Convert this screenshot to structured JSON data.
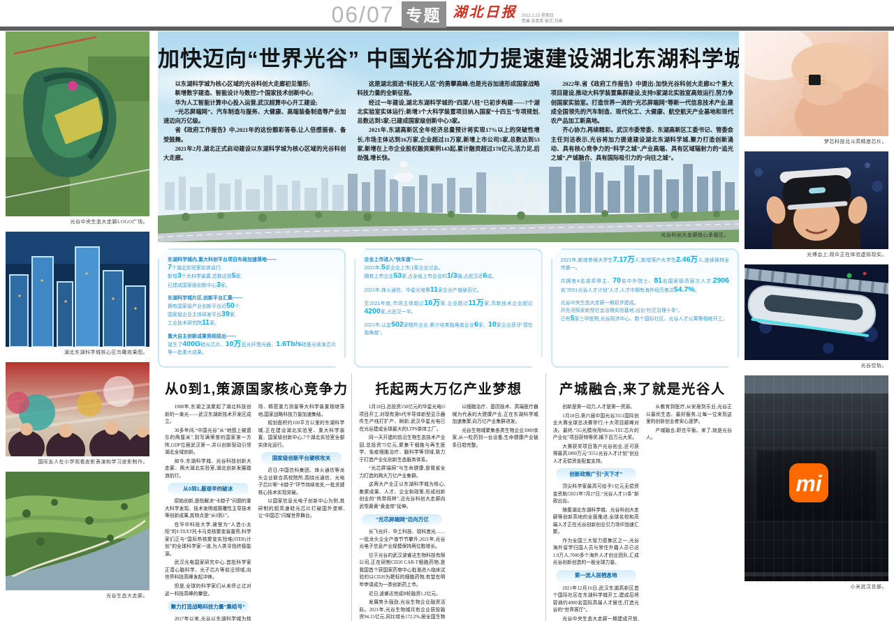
{
  "header": {
    "page_number": "06/07",
    "section": "专题",
    "masthead": "湖北日报",
    "date_line": "2022.1.23 星期日",
    "credit_line": "责编:张真真 版式:刘雍"
  },
  "headline": "加快迈向“世界光谷” 中国光谷加力提速建设湖北东湖科学城",
  "intro_columns": [
    [
      "以东湖科学城为核心区域的光谷科创大走廊初见雏形;",
      "新增数字建造、智能设计与数控2个国家技术创新中心;",
      "华为人工智能计算中心投入运营,武汉超算中心开工建设;",
      "“光芯屏端网”、汽车制造与服务、大健康、高端装备制造等产业加速迈向万亿级。",
      "省《政府工作报告》中,2021年的这份靓彩答卷,让人倍感振奋、备受鼓舞。",
      "2021年2月,湖北正式启动建设以东湖科学城为核心区域的光谷科创大走廊。"
    ],
    [
      "这是湖北挺进“科技无人区”的勇攀高峰,也是光谷加速形成国家战略科技力量的全新征程。",
      "经过一年建设,湖北东湖科学城的“四梁八柱”已初步构建——7个湖北实验室实体运行;新增3个大科学装置项目纳入国家“十四五”专项规划,总数达到5家;已建成国家级创新中心3家。",
      "2021年,东湖高新区全年经济总量预计将实现17%以上的突破性增长,市场主体达到16万家,企业超过11万家,新增上市公司5家,总数达到53家,新增在上市企业股权融资案例143起,累计融资超过178亿元,活力足,后劲强,增长快。"
    ],
    [
      "2022年,省《政府工作报告》中提出:加快光谷科创大走廊82个重大项目建设,推动大科学装置集群建设,支持9家湖北实验室高效运行,努力争创国家实验室。打造世界一流的“光芯屏端网”等新一代信息技术产业,建成全国领先的汽车制造、现代化工、大健康、航空航天产业基地和现代农产品加工新高地。",
      "齐心协力,再续精彩。武汉市委常委、东湖高新区工委书记、管委会主任刘洁表示,光谷将加力提速建设湖北东湖科学城,聚力打造创新涌动、具有核心竞争力的“科学之城”,产业高端、具有区域辐射力的“追光之城”,产城融合、具有国际吸引力的“向往之城”。"
    ]
  ],
  "panorama_caption": "光谷科创大走廊核心承载区。",
  "infographic": {
    "accent_color": "#00aeef",
    "text_color": "#3a99d2",
    "columns": [
      [
        [
          [
            {
              "t": "东湖科学城内,重大科创平台项目布局加速落地——"
            }
          ],
          [
            {
              "t": "7",
              "h": true
            },
            {
              "t": "个湖北实验室实体运行;"
            }
          ],
          [
            {
              "t": "新增"
            },
            {
              "t": "3",
              "h": true
            },
            {
              "t": "个大科学装置,总数达到"
            },
            {
              "t": "5",
              "h": true
            },
            {
              "t": "家;"
            }
          ],
          [
            {
              "t": "已建成国家级创新中心"
            },
            {
              "t": "3",
              "h": true
            },
            {
              "t": "家。"
            }
          ]
        ],
        [
          [
            {
              "t": "东湖科学城片区,创新平台汇集——"
            }
          ],
          [
            {
              "t": "拥有国家级产业创新平台近"
            },
            {
              "t": "50",
              "h": true
            },
            {
              "t": "个;"
            }
          ],
          [
            {
              "t": "国家级企业主体研发平台"
            },
            {
              "t": "39",
              "h": true
            },
            {
              "t": "家;"
            }
          ],
          [
            {
              "t": "工业技术研究院"
            },
            {
              "t": "11",
              "h": true
            },
            {
              "t": "家。"
            }
          ]
        ],
        [
          [
            {
              "t": "重大自主创新成果竞相迭出——"
            }
          ],
          [
            {
              "t": "诞生了"
            },
            {
              "t": "400G",
              "h": true
            },
            {
              "t": "硅光芯片、"
            },
            {
              "t": "10万",
              "h": true
            },
            {
              "t": "瓦光纤激光器、"
            },
            {
              "t": "1.6Tb/s",
              "h": true
            },
            {
              "t": "硅基光收发芯片等一批重大成果。"
            }
          ]
        ]
      ],
      [
        [
          [
            {
              "t": "企业上市进入“快车道”——"
            }
          ],
          [
            {
              "t": "2021年,"
            },
            {
              "t": "5",
              "h": true
            },
            {
              "t": "家企业上市,1家企业过会。"
            }
          ],
          [
            {
              "t": "拥有上市企业"
            },
            {
              "t": "53",
              "h": true
            },
            {
              "t": "家,占全省上市企业的"
            },
            {
              "t": "1/3",
              "h": true
            },
            {
              "t": "强,占武汉近"
            },
            {
              "t": "6",
              "h": true
            },
            {
              "t": "成。"
            }
          ]
        ],
        [
          [
            {
              "t": "2021年,烽火通信、华星光电等"
            },
            {
              "t": "11",
              "h": true
            },
            {
              "t": "家企业产值破百亿。"
            }
          ]
        ],
        [
          [
            {
              "t": "至2021年底,市场主体超过"
            },
            {
              "t": "16万",
              "h": true
            },
            {
              "t": "家,企业超过"
            },
            {
              "t": "11万",
              "h": true
            },
            {
              "t": "家,高新技术企业超过"
            },
            {
              "t": "4200",
              "h": true
            },
            {
              "t": "家,占武汉一半。"
            }
          ]
        ],
        [
          [
            {
              "t": "2021年,认定"
            },
            {
              "t": "502",
              "h": true
            },
            {
              "t": "家瞪羚企业,累计培育独角兽企业"
            },
            {
              "t": "6",
              "h": true
            },
            {
              "t": "家、"
            },
            {
              "t": "10",
              "h": true
            },
            {
              "t": "家企业获评“潜在独角兽”。"
            }
          ]
        ]
      ],
      [
        [
          [
            {
              "t": "2021年,新增参保大学生"
            },
            {
              "t": "7.17万",
              "h": true
            },
            {
              "t": "人,新增落户大学生"
            },
            {
              "t": "2.46万",
              "h": true
            },
            {
              "t": "人,连续保持全市第一。"
            }
          ]
        ],
        [
          [
            {
              "t": "共拥有4名诺奖得主、"
            },
            {
              "t": "70",
              "h": true
            },
            {
              "t": "名中外院士、"
            },
            {
              "t": "81",
              "h": true
            },
            {
              "t": "名国家级高层次人才,"
            },
            {
              "t": "2906",
              "h": true
            },
            {
              "t": "名“3551光谷人才计划”人才,人才中拥有海外经历者达"
            },
            {
              "t": "54.7%",
              "h": true
            },
            {
              "t": "。"
            }
          ]
        ],
        [
          [
            {
              "t": "光谷中央生态大走廊一期初步建成。"
            }
          ],
          [
            {
              "t": "开先河探索新型社会治理实验基地,出台“社区治理十条”。"
            }
          ],
          [
            {
              "t": "已有"
            },
            {
              "t": "5",
              "h": true
            },
            {
              "t": "家三甲医院,光谷同济中心、数个国际社区、光谷人才公寓等相继开工。"
            }
          ]
        ]
      ]
    ]
  },
  "articles": [
    {
      "title": "从0到1,策源国家核心竞争力",
      "body": [
        {
          "p": "1988年,东湖之滨聚起了湖北科技创新的一束光——武汉东湖新技术开发区成立。"
        },
        {
          "p": "30多年间,“中国光谷”从“地图上被遗忘的两厘米”,到写满荣誉的国家第一方阵,GDP位居武汉第一,并以创新驱动引领湖北全域创新。"
        },
        {
          "p": "如今,东湖科学城、光谷科技创新大走廊、两大湖北实验室,湖北创新发展踏浪前行。"
        },
        {
          "sub": "从0到1,最艰辛的破冰"
        },
        {
          "p": "原始创新,是指解决“卡脖子”问题的重大科学发现、技术发明或颠覆性主导技术等创新成果,其特点是“从0到1”。"
        },
        {
          "p": "在华中科技大学,被誉为“人造小太阳”的J-TEXT托卡马克核聚变装置旁,科学家们正与“国际热核聚变实验堆(ITER)计划”的全球科学家一道,为人类寻找终极能源。"
        },
        {
          "p": "武汉光电国家研究中心,首批科学家正潜心脑科学、光子芯片等前沿领域,向世界科技高峰发起冲锋。"
        },
        {
          "p": "但是,全球的科学家们从未停止过对这一科技高峰的攀登。"
        },
        {
          "sub": "聚力打造战略科技力量“集结号”"
        },
        {
          "p": "2017年以来,光谷以东湖科学城为核心集中布局重大科技基础设施,脉冲强磁场、精密重力测量等大科学装置相继落地,国家战略科技力量加速集结。"
        },
        {
          "p": "规划面积约100平方公里的东湖科学城,正在建设湖北实验室、重大科学装置、国家级创新中心,7个湖北实验室全部实体化运行。"
        },
        {
          "sub": "国家级创新平台硬核攻关"
        },
        {
          "p": "近日,中国信科集团、烽火通信等龙头企业联合高校院所,围绕光通信、光电子芯片等“卡脖子”环节持续攻关,一批关键核心技术实现突破。"
        },
        {
          "p": "以国家信息光电子创新中心为例,其研制的超高速硅光芯片打破国外垄断,让“中国芯”闪耀世界舞台。"
        }
      ]
    },
    {
      "title": "托起两大万亿产业梦想",
      "body": [
        {
          "p": "1月18日,总投资150亿元的华星光电t5项目开工,对现有第6代半导体新型显示器件生产线打扩产、刷新,武汉华星光电已在光谷建成全球最大的LTPS单体工厂。"
        },
        {
          "p": "同一天开建的前沿生物生态技术产业园,总投资75亿元,聚集干细胞与再生医学、免疫细胞治疗、脑科学等领域,致力于打造产业化创新生态服务体系。"
        },
        {
          "p": "“光芯屏端网”与生命健康,是我省全力打造的两大万亿产业集群。"
        },
        {
          "p": "这两大产业正以东湖科学城为核心,集聚成果、人才、企业和政策,形成创新创业的“热带雨林”,沿光谷科创大走廊向武鄂黄黄“黄金带”延伸。"
        },
        {
          "sub": "“光芯屏端网”迈向万亿"
        },
        {
          "p": "长飞光纤、华工科技、锐科激光……一批龙头企业产值节节攀升,2021年,光谷光电子信息产业规模保持两位数增长。"
        },
        {
          "p": "位于光谷的武汉波睿达生物科技有限公司,正在研制CD20 CAR-T细胞药物,是我国首个获国家药审中心批准进入临床试验的以CD20为靶标的细胞药物,有望在明年申请成为一类创新药上市。"
        },
        {
          "p": "近日,波睿达完成B轮融资1.2亿元。"
        },
        {
          "p": "发展势头强劲,光谷生物企业融资活跃。2021年,光谷生物城共有企业获投融资94.15亿元,同比增长172.2%,居全国生物园区前列。"
        },
        {
          "sub": "大健康产业蓄势突破"
        },
        {
          "p": "以细胞治疗、基因技术、高端医疗器械为代表的大健康产业,正在东湖科学城加速集聚,向万亿产业集群进发。"
        },
        {
          "p": "光谷生物城聚集各类生物企业3000余家,从一粒药到一台设备,生命健康产业链条日趋完整。"
        }
      ]
    },
    {
      "title": "产城融合,来了就是光谷人",
      "body": [
        {
          "p": "创新是第一动力,人才是第一资源。"
        },
        {
          "p": "1月18日,第六届中国光谷3551国际创业大赛全球总决赛举行,十大项目巅峰对决。最终,“5G光模块用Micro-TEC芯片的产业化”项目获特等奖,摘下百万元大奖。"
        },
        {
          "p": "大赛获奖项目落户光谷创业,还可获得最高1000万元“3551光谷人才计划”创业人才无偿资金配套支持。"
        },
        {
          "sub": "创新政策广引“天下才”"
        },
        {
          "p": "顶尖科学家最高可给予1亿元无偿资金资助!2021年7月27日,“光谷人才11条”新政出台。"
        },
        {
          "p": "随着湖北东湖科学城、光谷科创大走廊等创新高地的全面推进,全球名校和高端人才正在光谷创新创业引力场中加速汇聚。"
        },
        {
          "p": "作为全国三大智力密集区之一,光谷海外留学归国人员与常住外籍人员已达1.9万人,7000多个海外人才创业团队,汇成光谷创新创造的一股全球力量。"
        },
        {
          "sub": "第一流人居栖息地"
        },
        {
          "p": "2021年12月16日,武汉东湖高新区首个国际社区在东湖科学城开工,建成后将容纳约4000名国际高端人才居住,打造光谷的“世界客厅”。"
        },
        {
          "p": "光谷中央生态大走廊一期建成开放,空轨旅游线加快建设,山水相融、蓝绿交织的生态底色越擦越亮。"
        },
        {
          "p": "从教育到医疗,从安居到乐业,光谷正以最优生态、最好服务,让每一位来到这里的创新创业者安心逐梦。"
        },
        {
          "p": "产城融合,职住平衡。来了,就是光谷人。"
        }
      ]
    }
  ],
  "left_photos": [
    {
      "art": "aerial-green-logo",
      "caption": "光谷中央生态大走廊LOGO广场。"
    },
    {
      "art": "city-render",
      "caption": "湖北东湖科学城核心区鸟瞰效果图。"
    },
    {
      "art": "shadow-play-event",
      "caption": "国际友人在小学观看皮影表演和学习皮影制作。"
    },
    {
      "art": "park-aerial",
      "caption": "光谷生态大走廊。"
    }
  ],
  "right_photos": [
    {
      "art": "chip-fingers",
      "caption": "梦芯科技北斗高精度芯片。"
    },
    {
      "art": "vr-headset",
      "caption": "光博会上,观众正在体验虚拟现实。"
    },
    {
      "art": "sky-train",
      "caption": "光谷空轨。"
    },
    {
      "art": "xiaomi-building",
      "caption": "小米武汉总部。",
      "logo_text": "mi"
    }
  ]
}
